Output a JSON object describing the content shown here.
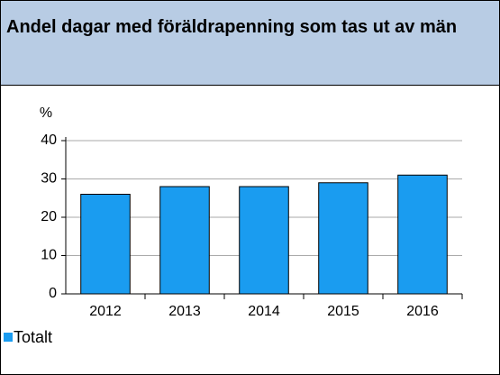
{
  "chart_data": {
    "type": "bar",
    "title": "Andel dagar med föräldrapenning som tas ut av män",
    "y_label": "%",
    "categories": [
      "2012",
      "2013",
      "2014",
      "2015",
      "2016"
    ],
    "series": [
      {
        "name": "Totalt",
        "color": "#1a9cf0",
        "values": [
          26,
          28,
          28,
          29,
          31
        ]
      }
    ],
    "ylim": [
      0,
      40
    ],
    "yticks": [
      0,
      10,
      20,
      30,
      40
    ],
    "grid": true,
    "legend": "bottom-left"
  }
}
